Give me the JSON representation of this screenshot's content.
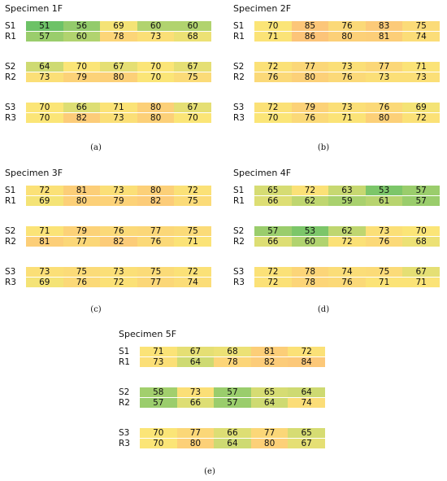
{
  "chart_data": [
    {
      "type": "heatmap",
      "title": "Specimen 1F",
      "caption": "(a)",
      "color_scale": [
        "#66c066",
        "#fbe577",
        "#fcc479"
      ],
      "groups": [
        {
          "rows": [
            {
              "label": "S1",
              "values": [
                51,
                56,
                69,
                60,
                60
              ]
            },
            {
              "label": "R1",
              "values": [
                57,
                60,
                78,
                73,
                68
              ]
            }
          ]
        },
        {
          "rows": [
            {
              "label": "S2",
              "values": [
                64,
                70,
                67,
                70,
                67
              ]
            },
            {
              "label": "R2",
              "values": [
                73,
                79,
                80,
                70,
                75
              ]
            }
          ]
        },
        {
          "rows": [
            {
              "label": "S3",
              "values": [
                70,
                66,
                71,
                80,
                67
              ]
            },
            {
              "label": "R3",
              "values": [
                70,
                82,
                73,
                80,
                70
              ]
            }
          ]
        }
      ]
    },
    {
      "type": "heatmap",
      "title": "Specimen 2F",
      "caption": "(b)",
      "groups": [
        {
          "rows": [
            {
              "label": "S1",
              "values": [
                70,
                85,
                76,
                83,
                75
              ]
            },
            {
              "label": "R1",
              "values": [
                71,
                86,
                80,
                81,
                74
              ]
            }
          ]
        },
        {
          "rows": [
            {
              "label": "S2",
              "values": [
                72,
                77,
                73,
                77,
                71
              ]
            },
            {
              "label": "R2",
              "values": [
                76,
                80,
                76,
                73,
                73
              ]
            }
          ]
        },
        {
          "rows": [
            {
              "label": "S3",
              "values": [
                72,
                79,
                73,
                76,
                69
              ]
            },
            {
              "label": "R3",
              "values": [
                70,
                76,
                71,
                80,
                72
              ]
            }
          ]
        }
      ]
    },
    {
      "type": "heatmap",
      "title": "Specimen 3F",
      "caption": "(c)",
      "groups": [
        {
          "rows": [
            {
              "label": "S1",
              "values": [
                72,
                81,
                73,
                80,
                72
              ]
            },
            {
              "label": "R1",
              "values": [
                69,
                80,
                79,
                82,
                75
              ]
            }
          ]
        },
        {
          "rows": [
            {
              "label": "S2",
              "values": [
                71,
                79,
                76,
                77,
                75
              ]
            },
            {
              "label": "R2",
              "values": [
                81,
                77,
                82,
                76,
                71
              ]
            }
          ]
        },
        {
          "rows": [
            {
              "label": "S3",
              "values": [
                73,
                75,
                73,
                75,
                72
              ]
            },
            {
              "label": "R3",
              "values": [
                69,
                76,
                72,
                77,
                74
              ]
            }
          ]
        }
      ]
    },
    {
      "type": "heatmap",
      "title": "Specimen 4F",
      "caption": "(d)",
      "groups": [
        {
          "rows": [
            {
              "label": "S1",
              "values": [
                65,
                72,
                63,
                53,
                57
              ]
            },
            {
              "label": "R1",
              "values": [
                66,
                62,
                59,
                61,
                57
              ]
            }
          ]
        },
        {
          "rows": [
            {
              "label": "S2",
              "values": [
                57,
                53,
                62,
                73,
                70
              ]
            },
            {
              "label": "R2",
              "values": [
                66,
                60,
                72,
                76,
                68
              ]
            }
          ]
        },
        {
          "rows": [
            {
              "label": "S3",
              "values": [
                72,
                78,
                74,
                75,
                67
              ]
            },
            {
              "label": "R3",
              "values": [
                72,
                78,
                76,
                71,
                71
              ]
            }
          ]
        }
      ]
    },
    {
      "type": "heatmap",
      "title": "Specimen 5F",
      "caption": "(e)",
      "groups": [
        {
          "rows": [
            {
              "label": "S1",
              "values": [
                71,
                67,
                68,
                81,
                72
              ]
            },
            {
              "label": "R1",
              "values": [
                73,
                64,
                78,
                82,
                84
              ]
            }
          ]
        },
        {
          "rows": [
            {
              "label": "S2",
              "values": [
                58,
                73,
                57,
                65,
                64
              ]
            },
            {
              "label": "R2",
              "values": [
                57,
                66,
                57,
                64,
                74
              ]
            }
          ]
        },
        {
          "rows": [
            {
              "label": "S3",
              "values": [
                70,
                77,
                66,
                77,
                65
              ]
            },
            {
              "label": "R3",
              "values": [
                70,
                80,
                64,
                80,
                67
              ]
            }
          ]
        }
      ]
    }
  ]
}
